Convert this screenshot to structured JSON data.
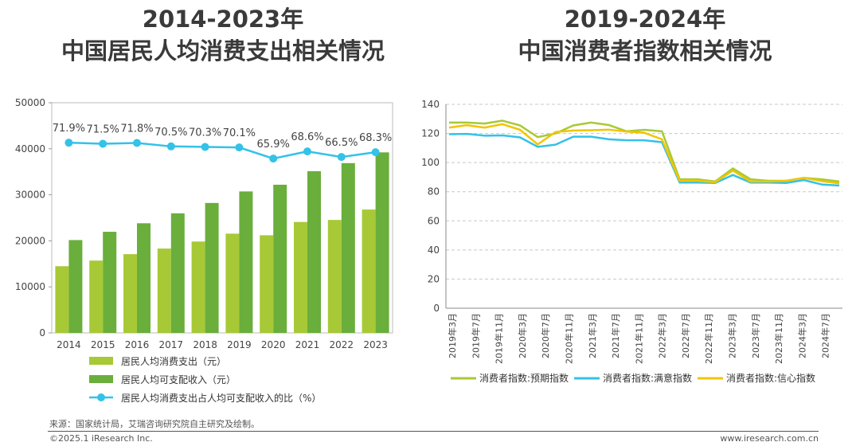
{
  "left_title": {
    "line1": "2014-2023年",
    "line2": "中国居民人均消费支出相关情况"
  },
  "right_title": {
    "line1": "2019-2024年",
    "line2": "中国消费者指数相关情况"
  },
  "footer": {
    "source": "来源：国家统计局，艾瑞咨询研究院自主研究及绘制。",
    "copyright": "©2025.1 iResearch Inc.",
    "website": "www.iresearch.com.cn"
  },
  "chart_data": [
    {
      "type": "bar",
      "categories": [
        "2014",
        "2015",
        "2016",
        "2017",
        "2018",
        "2019",
        "2020",
        "2021",
        "2022",
        "2023"
      ],
      "ylim": [
        0,
        50000
      ],
      "yticks": [
        0,
        10000,
        20000,
        30000,
        40000,
        50000
      ],
      "ytick_labels": [
        "0",
        "10000",
        "20000",
        "30000",
        "40000",
        "50000"
      ],
      "series": [
        {
          "name": "居民人均消费支出（元）",
          "color": "#a7c936",
          "values": [
            14491,
            15712,
            17111,
            18322,
            19853,
            21559,
            21210,
            24100,
            24538,
            26796
          ]
        },
        {
          "name": "居民人均可支配收入（元）",
          "color": "#6aae3c",
          "values": [
            20167,
            21966,
            23821,
            25974,
            28228,
            30733,
            32189,
            35128,
            36883,
            39218
          ]
        }
      ],
      "line_series": {
        "name": "居民人均消费支出占人均可支配收入的比（%）",
        "color": "#33c2e8",
        "values": [
          71.9,
          71.5,
          71.8,
          70.5,
          70.3,
          70.1,
          65.9,
          68.6,
          66.5,
          68.3
        ],
        "labels": [
          "71.9%",
          "71.5%",
          "71.8%",
          "70.5%",
          "70.3%",
          "70.1%",
          "65.9%",
          "68.6%",
          "66.5%",
          "68.3%"
        ],
        "ylim": [
          0,
          87
        ]
      },
      "legend_position": "bottom-left"
    },
    {
      "type": "line",
      "ylim": [
        0,
        140
      ],
      "yticks": [
        0,
        20,
        40,
        60,
        80,
        100,
        120,
        140
      ],
      "ytick_labels": [
        "0",
        "20",
        "40",
        "60",
        "80",
        "100",
        "120",
        "140"
      ],
      "x_tick_labels": [
        "2019年3月",
        "2019年7月",
        "2019年11月",
        "2020年3月",
        "2020年7月",
        "2020年11月",
        "2021年3月",
        "2021年7月",
        "2021年11月",
        "2022年3月",
        "2022年7月",
        "2022年11月",
        "2023年3月",
        "2023年7月",
        "2023年11月",
        "2024年3月",
        "2024年7月"
      ],
      "grid": true,
      "series": [
        {
          "name": "消费者指数:预期指数",
          "color": "#a7c936",
          "values": [
            127.5,
            127.5,
            126.8,
            128.8,
            125.5,
            117.5,
            120,
            125.5,
            127.5,
            125.8,
            121.5,
            122.5,
            121.5,
            88.5,
            88.5,
            87,
            96,
            88.5,
            87.5,
            87.5,
            89.5,
            88.5,
            87
          ]
        },
        {
          "name": "消费者指数:满意指数",
          "color": "#33c2e8",
          "values": [
            119.5,
            119.7,
            118.5,
            118.7,
            117.3,
            110.8,
            112.3,
            117.8,
            117.8,
            116,
            115.3,
            115.3,
            114,
            86.3,
            86.3,
            86,
            91.5,
            86.3,
            86.3,
            86,
            88,
            85,
            84.2
          ]
        },
        {
          "name": "消费者指数:信心指数",
          "color": "#f2c500",
          "values": [
            124,
            125.7,
            124,
            126.4,
            122.5,
            112.5,
            121,
            122,
            122.2,
            122.6,
            121.3,
            120.5,
            116,
            87.5,
            87.5,
            86.5,
            94.5,
            87,
            87,
            87.5,
            89.5,
            87.3,
            85.7
          ]
        }
      ],
      "legend_position": "bottom"
    }
  ]
}
